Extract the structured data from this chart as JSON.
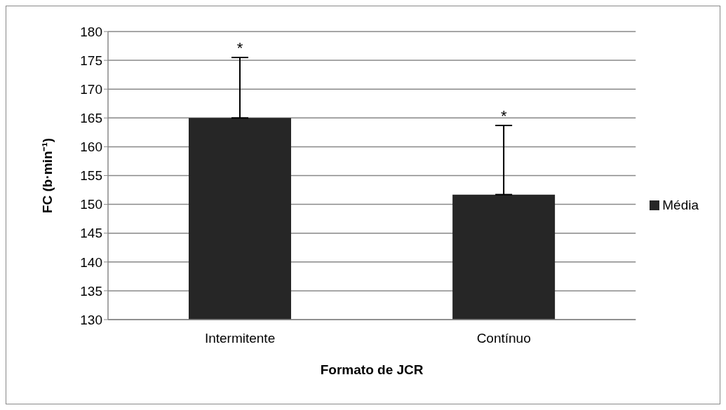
{
  "chart_data": {
    "type": "bar",
    "xlabel": "Formato de JCR",
    "ylabel": "FC (b·min⁻¹)",
    "categories": [
      "Intermitente",
      "Contínuo"
    ],
    "series": [
      {
        "name": "Média",
        "color": "#262626",
        "values": [
          165,
          151.7
        ],
        "errors": [
          [
            165,
            175.5
          ],
          [
            151.7,
            163.7
          ]
        ]
      }
    ],
    "annotations": [
      {
        "text": "*",
        "x": "Intermitente",
        "y": 175.5
      },
      {
        "text": "*",
        "x": "Contínuo",
        "y": 163.7
      }
    ],
    "ylim": [
      130,
      180
    ],
    "yticks": [
      130,
      135,
      140,
      145,
      150,
      155,
      160,
      165,
      170,
      175,
      180
    ],
    "grid": "y",
    "legend": "right"
  }
}
